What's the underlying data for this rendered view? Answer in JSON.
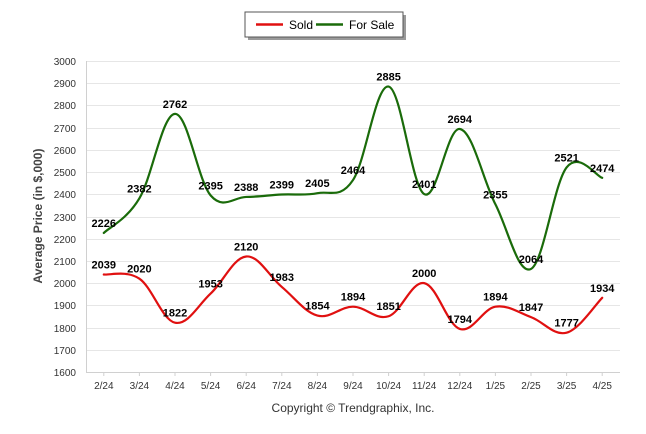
{
  "chart_data": {
    "type": "line",
    "title": "",
    "xlabel": "",
    "ylabel": "Average Price (in $,000)",
    "ylim": [
      1600,
      3000
    ],
    "yticks": [
      1600,
      1700,
      1800,
      1900,
      2000,
      2100,
      2200,
      2300,
      2400,
      2500,
      2600,
      2700,
      2800,
      2900,
      3000
    ],
    "grid": true,
    "legend_position": "top-center",
    "categories": [
      "2/24",
      "3/24",
      "4/24",
      "5/24",
      "6/24",
      "7/24",
      "8/24",
      "9/24",
      "10/24",
      "11/24",
      "12/24",
      "1/25",
      "2/25",
      "3/25",
      "4/25"
    ],
    "series": [
      {
        "name": "Sold",
        "color": "#e01010",
        "values": [
          2039,
          2020,
          1822,
          1953,
          2120,
          1983,
          1854,
          1894,
          1851,
          2000,
          1794,
          1894,
          1847,
          1777,
          1934
        ]
      },
      {
        "name": "For Sale",
        "color": "#1a6b0a",
        "values": [
          2226,
          2382,
          2762,
          2395,
          2388,
          2399,
          2405,
          2464,
          2885,
          2401,
          2694,
          2355,
          2064,
          2521,
          2474
        ]
      }
    ],
    "credit": "Copyright © Trendgraphix, Inc."
  }
}
